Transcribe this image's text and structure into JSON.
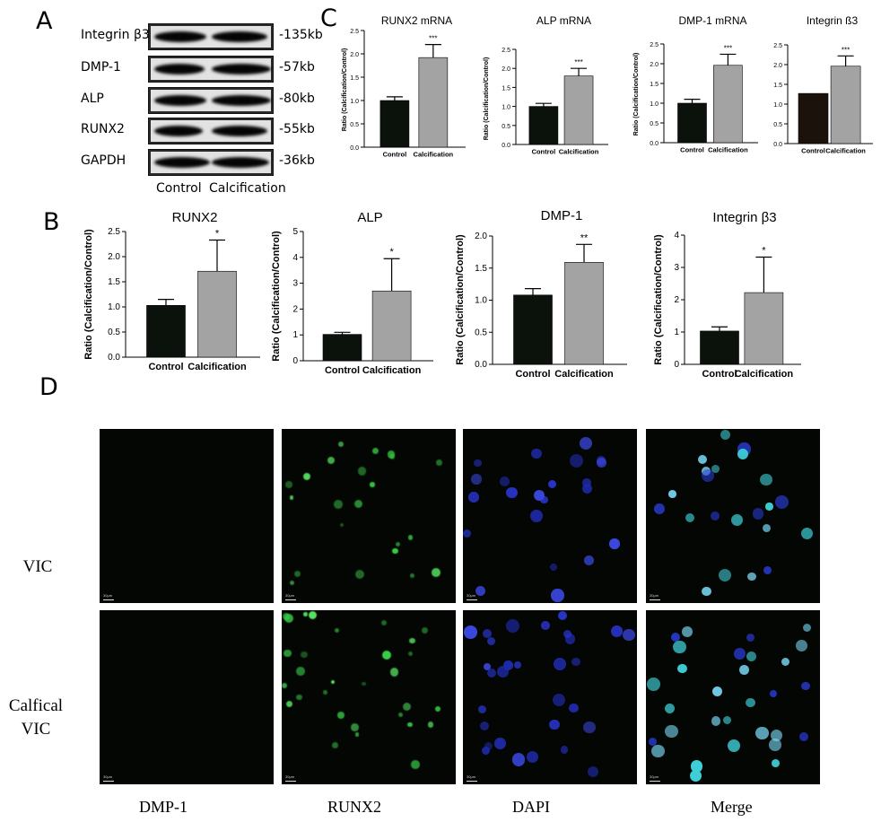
{
  "panels": {
    "a": "A",
    "b": "B",
    "c": "C",
    "d": "D"
  },
  "western_blot": {
    "rows": [
      {
        "protein": "Integrin β3",
        "size": "-135kb"
      },
      {
        "protein": "DMP-1",
        "size": "-57kb"
      },
      {
        "protein": "ALP",
        "size": "-80kb"
      },
      {
        "protein": "RUNX2",
        "size": "-55kb"
      },
      {
        "protein": "GAPDH",
        "size": "-36kb"
      }
    ],
    "lanes": [
      "Control",
      "Calcification"
    ]
  },
  "chart_data": [
    {
      "panel": "B",
      "type": "bar",
      "title": "RUNX2",
      "ylabel": "Ratio (Calcification/Control)",
      "categories": [
        "Control",
        "Calcification"
      ],
      "values": [
        1.03,
        1.71
      ],
      "errors": [
        0.12,
        0.62
      ],
      "significance": [
        "",
        "*"
      ],
      "ylim": [
        0,
        2.5
      ],
      "ticks": [
        "0.0",
        "0.5",
        "1.0",
        "1.5",
        "2.0",
        "2.5"
      ],
      "colors": [
        "#0b120b",
        "#a3a3a3"
      ]
    },
    {
      "panel": "B",
      "type": "bar",
      "title": "ALP",
      "ylabel": "Ratio (Calcification/Control)",
      "categories": [
        "Control",
        "Calcification"
      ],
      "values": [
        1.02,
        2.7
      ],
      "errors": [
        0.08,
        1.25
      ],
      "significance": [
        "",
        "*"
      ],
      "ylim": [
        0,
        5
      ],
      "ticks": [
        "0",
        "1",
        "2",
        "3",
        "4",
        "5"
      ],
      "colors": [
        "#0b120b",
        "#a3a3a3"
      ]
    },
    {
      "panel": "B",
      "type": "bar",
      "title": "DMP-1",
      "ylabel": "Ratio (Calcification/Control)",
      "categories": [
        "Control",
        "Calcification"
      ],
      "values": [
        1.08,
        1.59
      ],
      "errors": [
        0.1,
        0.28
      ],
      "significance": [
        "",
        "**"
      ],
      "ylim": [
        0,
        2
      ],
      "ticks": [
        "0.0",
        "0.5",
        "1.0",
        "1.5",
        "2.0"
      ],
      "colors": [
        "#0b120b",
        "#a3a3a3"
      ]
    },
    {
      "panel": "B",
      "type": "bar",
      "title": "Integrin β3",
      "ylabel": "Ratio (Calcification/Control)",
      "categories": [
        "Control",
        "Calcification"
      ],
      "values": [
        1.03,
        2.22
      ],
      "errors": [
        0.13,
        1.1
      ],
      "significance": [
        "",
        "*"
      ],
      "ylim": [
        0,
        4
      ],
      "ticks": [
        "0",
        "1",
        "2",
        "3",
        "4"
      ],
      "colors": [
        "#0b120b",
        "#a3a3a3"
      ]
    },
    {
      "panel": "C",
      "type": "bar",
      "title": "RUNX2 mRNA",
      "ylabel": "Ratio (Calcification/Control)",
      "categories": [
        "Control",
        "Calcification"
      ],
      "values": [
        1.0,
        1.92
      ],
      "errors": [
        0.08,
        0.28
      ],
      "significance": [
        "",
        "***"
      ],
      "ylim": [
        0,
        2.5
      ],
      "ticks": [
        "0.0",
        "0.5",
        "1.0",
        "1.5",
        "2.0",
        "2.5"
      ],
      "colors": [
        "#0b120b",
        "#a3a3a3"
      ]
    },
    {
      "panel": "C",
      "type": "bar",
      "title": "ALP mRNA",
      "ylabel": "Ratio (Calcification/Control)",
      "categories": [
        "Control",
        "Calcification"
      ],
      "values": [
        1.0,
        1.8
      ],
      "errors": [
        0.08,
        0.2
      ],
      "significance": [
        "",
        "***"
      ],
      "ylim": [
        0,
        2.5
      ],
      "ticks": [
        "0.0",
        "0.5",
        "1.0",
        "1.5",
        "2.0",
        "2.5"
      ],
      "colors": [
        "#0b120b",
        "#a3a3a3"
      ]
    },
    {
      "panel": "C",
      "type": "bar",
      "title": "DMP-1 mRNA",
      "ylabel": "Ratio (Calcification/Control)",
      "categories": [
        "Control",
        "Calcification"
      ],
      "values": [
        1.0,
        1.96
      ],
      "errors": [
        0.1,
        0.28
      ],
      "significance": [
        "",
        "***"
      ],
      "ylim": [
        0,
        2.5
      ],
      "ticks": [
        "0.0",
        "0.5",
        "1.0",
        "1.5",
        "2.0",
        "2.5"
      ],
      "colors": [
        "#0b120b",
        "#a3a3a3"
      ]
    },
    {
      "panel": "C",
      "type": "bar",
      "title": "Integrin ß3",
      "ylabel": "",
      "categories": [
        "Control",
        "Calcification"
      ],
      "values": [
        1.27,
        1.96
      ],
      "errors": [
        0,
        0.26
      ],
      "significance": [
        "",
        "***"
      ],
      "ylim": [
        0,
        2.5
      ],
      "ticks": [
        "0.0",
        "0.5",
        "1.0",
        "1.5",
        "2.0",
        "2.5"
      ],
      "colors": [
        "#1a120b",
        "#a3a3a3"
      ]
    }
  ],
  "microscopy": {
    "rows": [
      "VIC",
      "Calfical\nVIC"
    ],
    "columns": [
      "DMP-1",
      "RUNX2",
      "DAPI",
      "Merge"
    ],
    "scale_bar": "30μm"
  }
}
